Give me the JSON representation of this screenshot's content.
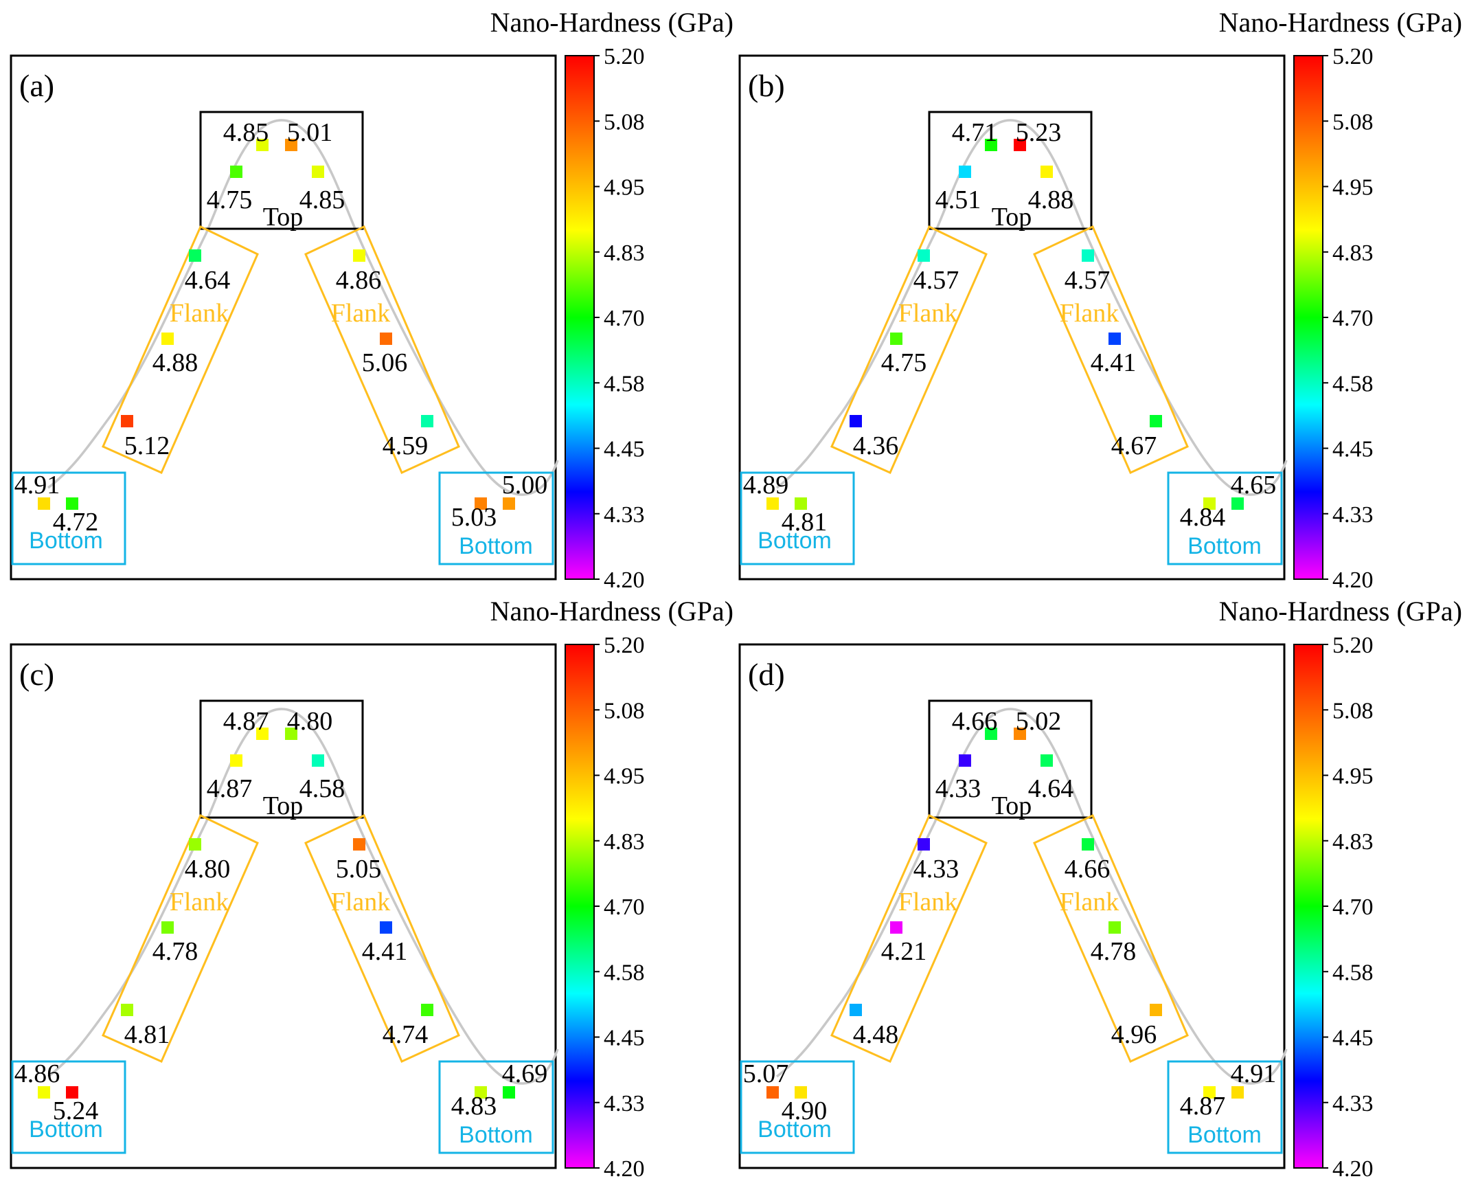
{
  "colorbar": {
    "title": "Nano-Hardness (GPa)",
    "min": 4.2,
    "max": 5.2,
    "ticks": [
      "5.20",
      "5.08",
      "4.95",
      "4.83",
      "4.70",
      "4.58",
      "4.45",
      "4.33",
      "4.20"
    ],
    "stops": [
      "#ff0000",
      "#ff7f00",
      "#ffff00",
      "#00ff00",
      "#00ffff",
      "#0000ff",
      "#ff00ff"
    ]
  },
  "region_labels": {
    "top": "Top",
    "flank": "Flank",
    "bottom": "Bottom"
  },
  "colors": {
    "top_box": "#000000",
    "flank_box": "#ffbe1e",
    "bottom_box": "#14b4e6",
    "flank_text": "#ffbe1e",
    "bottom_text": "#14b4e6",
    "profile_curve": "#c8c8c8"
  },
  "chart_data": [
    {
      "type": "scatter",
      "panel": "(a)",
      "points": [
        {
          "region": "top",
          "position": "top-left-upper",
          "value": 4.85,
          "label": "4.85"
        },
        {
          "region": "top",
          "position": "top-right-upper",
          "value": 5.01,
          "label": "5.01"
        },
        {
          "region": "top",
          "position": "top-left-lower",
          "value": 4.75,
          "label": "4.75"
        },
        {
          "region": "top",
          "position": "top-right-lower",
          "value": 4.85,
          "label": "4.85"
        },
        {
          "region": "flank-left",
          "position": "upper",
          "value": 4.64,
          "label": "4.64"
        },
        {
          "region": "flank-left",
          "position": "middle",
          "value": 4.88,
          "label": "4.88"
        },
        {
          "region": "flank-left",
          "position": "lower",
          "value": 5.12,
          "label": "5.12"
        },
        {
          "region": "flank-right",
          "position": "upper",
          "value": 4.86,
          "label": "4.86"
        },
        {
          "region": "flank-right",
          "position": "middle",
          "value": 5.06,
          "label": "5.06"
        },
        {
          "region": "flank-right",
          "position": "lower",
          "value": 4.59,
          "label": "4.59"
        },
        {
          "region": "bottom-left",
          "position": "left",
          "value": 4.91,
          "label": "4.91"
        },
        {
          "region": "bottom-left",
          "position": "right",
          "value": 4.72,
          "label": "4.72"
        },
        {
          "region": "bottom-right",
          "position": "left",
          "value": 5.03,
          "label": "5.03"
        },
        {
          "region": "bottom-right",
          "position": "right",
          "value": 5.0,
          "label": "5.00"
        }
      ]
    },
    {
      "type": "scatter",
      "panel": "(b)",
      "points": [
        {
          "region": "top",
          "position": "top-left-upper",
          "value": 4.71,
          "label": "4.71"
        },
        {
          "region": "top",
          "position": "top-right-upper",
          "value": 5.23,
          "label": "5.23"
        },
        {
          "region": "top",
          "position": "top-left-lower",
          "value": 4.51,
          "label": "4.51"
        },
        {
          "region": "top",
          "position": "top-right-lower",
          "value": 4.88,
          "label": "4.88"
        },
        {
          "region": "flank-left",
          "position": "upper",
          "value": 4.57,
          "label": "4.57"
        },
        {
          "region": "flank-left",
          "position": "middle",
          "value": 4.75,
          "label": "4.75"
        },
        {
          "region": "flank-left",
          "position": "lower",
          "value": 4.36,
          "label": "4.36"
        },
        {
          "region": "flank-right",
          "position": "upper",
          "value": 4.57,
          "label": "4.57"
        },
        {
          "region": "flank-right",
          "position": "middle",
          "value": 4.41,
          "label": "4.41"
        },
        {
          "region": "flank-right",
          "position": "lower",
          "value": 4.67,
          "label": "4.67"
        },
        {
          "region": "bottom-left",
          "position": "left",
          "value": 4.89,
          "label": "4.89"
        },
        {
          "region": "bottom-left",
          "position": "right",
          "value": 4.81,
          "label": "4.81"
        },
        {
          "region": "bottom-right",
          "position": "left",
          "value": 4.84,
          "label": "4.84"
        },
        {
          "region": "bottom-right",
          "position": "right",
          "value": 4.65,
          "label": "4.65"
        }
      ]
    },
    {
      "type": "scatter",
      "panel": "(c)",
      "points": [
        {
          "region": "top",
          "position": "top-left-upper",
          "value": 4.87,
          "label": "4.87"
        },
        {
          "region": "top",
          "position": "top-right-upper",
          "value": 4.8,
          "label": "4.80"
        },
        {
          "region": "top",
          "position": "top-left-lower",
          "value": 4.87,
          "label": "4.87"
        },
        {
          "region": "top",
          "position": "top-right-lower",
          "value": 4.58,
          "label": "4.58"
        },
        {
          "region": "flank-left",
          "position": "upper",
          "value": 4.8,
          "label": "4.80"
        },
        {
          "region": "flank-left",
          "position": "middle",
          "value": 4.78,
          "label": "4.78"
        },
        {
          "region": "flank-left",
          "position": "lower",
          "value": 4.81,
          "label": "4.81"
        },
        {
          "region": "flank-right",
          "position": "upper",
          "value": 5.05,
          "label": "5.05"
        },
        {
          "region": "flank-right",
          "position": "middle",
          "value": 4.41,
          "label": "4.41"
        },
        {
          "region": "flank-right",
          "position": "lower",
          "value": 4.74,
          "label": "4.74"
        },
        {
          "region": "bottom-left",
          "position": "left",
          "value": 4.86,
          "label": "4.86"
        },
        {
          "region": "bottom-left",
          "position": "right",
          "value": 5.24,
          "label": "5.24"
        },
        {
          "region": "bottom-right",
          "position": "left",
          "value": 4.83,
          "label": "4.83"
        },
        {
          "region": "bottom-right",
          "position": "right",
          "value": 4.69,
          "label": "4.69"
        }
      ]
    },
    {
      "type": "scatter",
      "panel": "(d)",
      "points": [
        {
          "region": "top",
          "position": "top-left-upper",
          "value": 4.66,
          "label": "4.66"
        },
        {
          "region": "top",
          "position": "top-right-upper",
          "value": 5.02,
          "label": "5.02"
        },
        {
          "region": "top",
          "position": "top-left-lower",
          "value": 4.33,
          "label": "4.33"
        },
        {
          "region": "top",
          "position": "top-right-lower",
          "value": 4.64,
          "label": "4.64"
        },
        {
          "region": "flank-left",
          "position": "upper",
          "value": 4.33,
          "label": "4.33"
        },
        {
          "region": "flank-left",
          "position": "middle",
          "value": 4.21,
          "label": "4.21"
        },
        {
          "region": "flank-left",
          "position": "lower",
          "value": 4.48,
          "label": "4.48"
        },
        {
          "region": "flank-right",
          "position": "upper",
          "value": 4.66,
          "label": "4.66"
        },
        {
          "region": "flank-right",
          "position": "middle",
          "value": 4.78,
          "label": "4.78"
        },
        {
          "region": "flank-right",
          "position": "lower",
          "value": 4.96,
          "label": "4.96"
        },
        {
          "region": "bottom-left",
          "position": "left",
          "value": 5.07,
          "label": "5.07"
        },
        {
          "region": "bottom-left",
          "position": "right",
          "value": 4.9,
          "label": "4.90"
        },
        {
          "region": "bottom-right",
          "position": "left",
          "value": 4.87,
          "label": "4.87"
        },
        {
          "region": "bottom-right",
          "position": "right",
          "value": 4.91,
          "label": "4.91"
        }
      ]
    }
  ]
}
